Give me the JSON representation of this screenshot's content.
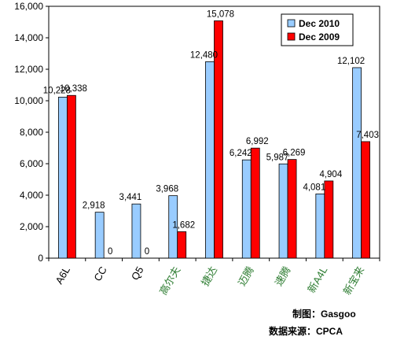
{
  "chart_data": {
    "type": "bar",
    "categories": [
      "A6L",
      "CC",
      "Q5",
      "高尔夫",
      "捷达",
      "迈腾",
      "速腾",
      "新A4L",
      "新宝来"
    ],
    "category_colors": [
      "#000000",
      "#000000",
      "#000000",
      "#2e7d32",
      "#2e7d32",
      "#2e7d32",
      "#2e7d32",
      "#2e7d32",
      "#2e7d32"
    ],
    "series": [
      {
        "name": "Dec 2010",
        "color": "#99ccff",
        "values": [
          10228,
          2918,
          3441,
          3968,
          12480,
          6242,
          5987,
          4081,
          12102
        ],
        "labels": [
          "10,228",
          "2,918",
          "3,441",
          "3,968",
          "12,480",
          "6,242",
          "5,987",
          "4,081",
          "12,102"
        ]
      },
      {
        "name": "Dec 2009",
        "color": "#ff0000",
        "values": [
          10338,
          0,
          0,
          1682,
          15078,
          6992,
          6269,
          4904,
          7403
        ],
        "labels": [
          "10,338",
          "0",
          "0",
          "1,682",
          "15,078",
          "6,992",
          "6,269",
          "4,904",
          "7,403"
        ]
      }
    ],
    "ylim": [
      0,
      16000
    ],
    "yticks": [
      "0",
      "2,000",
      "4,000",
      "6,000",
      "8,000",
      "10,000",
      "12,000",
      "14,000",
      "16,000"
    ],
    "grid": false,
    "legend": "top-right"
  },
  "credits": {
    "made_by": "制图：Gasgoo",
    "source": "数据来源：CPCA"
  }
}
